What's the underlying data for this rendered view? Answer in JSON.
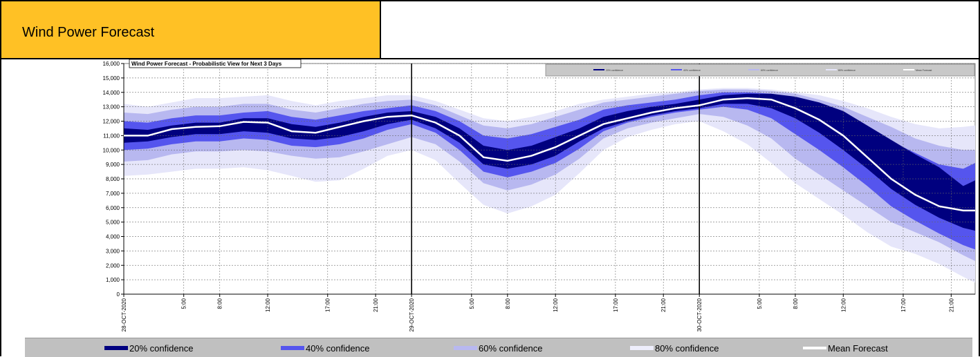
{
  "header": {
    "title": "Wind Power Forecast"
  },
  "chart_data": {
    "type": "area",
    "title": "Wind Power Forecast - Probabilistic View for Next 3 Days",
    "ylim": [
      0,
      16000
    ],
    "yticks": [
      "0",
      "1,000",
      "2,000",
      "3,000",
      "4,000",
      "5,000",
      "6,000",
      "7,000",
      "8,000",
      "9,000",
      "10,000",
      "11,000",
      "12,000",
      "13,000",
      "14,000",
      "15,000",
      "16,000"
    ],
    "xlim": [
      0,
      71
    ],
    "xticks": [
      {
        "x": 0,
        "label": "28-OCT-2020"
      },
      {
        "x": 5,
        "label": "5:00"
      },
      {
        "x": 8,
        "label": "8:00"
      },
      {
        "x": 12,
        "label": "12:00"
      },
      {
        "x": 17,
        "label": "17:00"
      },
      {
        "x": 21,
        "label": "21:00"
      },
      {
        "x": 24,
        "label": "29-OCT-2020"
      },
      {
        "x": 29,
        "label": "5:00"
      },
      {
        "x": 32,
        "label": "8:00"
      },
      {
        "x": 36,
        "label": "12:00"
      },
      {
        "x": 41,
        "label": "17:00"
      },
      {
        "x": 45,
        "label": "21:00"
      },
      {
        "x": 48,
        "label": "30-OCT-2020"
      },
      {
        "x": 53,
        "label": "5:00"
      },
      {
        "x": 56,
        "label": "8:00"
      },
      {
        "x": 60,
        "label": "12:00"
      },
      {
        "x": 65,
        "label": "17:00"
      },
      {
        "x": 69,
        "label": "21:00"
      }
    ],
    "day_boundaries": [
      24,
      48
    ],
    "grid": true,
    "x": [
      0,
      2,
      4,
      6,
      8,
      10,
      12,
      14,
      16,
      18,
      20,
      22,
      24,
      26,
      28,
      30,
      32,
      34,
      36,
      38,
      40,
      42,
      44,
      46,
      48,
      50,
      52,
      54,
      56,
      58,
      60,
      62,
      64,
      66,
      68,
      70,
      71
    ],
    "mean": [
      11000,
      11000,
      11450,
      11600,
      11650,
      11950,
      11900,
      11300,
      11200,
      11600,
      12000,
      12300,
      12400,
      11900,
      11000,
      9500,
      9250,
      9600,
      10200,
      11000,
      11800,
      12200,
      12600,
      12900,
      13100,
      13500,
      13600,
      13500,
      12900,
      12100,
      11000,
      9500,
      8000,
      6900,
      6100,
      5800,
      5800
    ],
    "series": [
      {
        "name": "80% confidence",
        "color": "#e6e6fa",
        "lower": [
          8200,
          8300,
          8500,
          8700,
          8700,
          8800,
          8600,
          8200,
          7800,
          7900,
          8700,
          9600,
          10000,
          9300,
          7700,
          6200,
          5600,
          6100,
          6900,
          8400,
          10000,
          10900,
          11400,
          11800,
          12000,
          11300,
          10400,
          9100,
          7700,
          6600,
          5500,
          4300,
          3300,
          2800,
          2100,
          1200,
          800
        ],
        "upper": [
          13200,
          13000,
          13300,
          13600,
          13600,
          13700,
          13800,
          13400,
          13100,
          13400,
          13600,
          13800,
          13800,
          13400,
          12800,
          12200,
          12000,
          12300,
          12700,
          13200,
          13500,
          13700,
          13900,
          14000,
          14200,
          14300,
          14300,
          14200,
          14000,
          13800,
          13400,
          12900,
          12300,
          11800,
          11500,
          11600,
          11700
        ]
      },
      {
        "name": "60% confidence",
        "color": "#b8b8f0",
        "lower": [
          9200,
          9300,
          9700,
          9900,
          9900,
          10000,
          9900,
          9600,
          9400,
          9500,
          9900,
          10400,
          10900,
          10400,
          9200,
          7700,
          7200,
          7600,
          8300,
          9400,
          10800,
          11500,
          11900,
          12200,
          12500,
          12300,
          11700,
          10800,
          9400,
          8300,
          7200,
          6100,
          5000,
          4300,
          3600,
          2700,
          2300
        ],
        "upper": [
          12600,
          12500,
          12800,
          13000,
          13000,
          13200,
          13200,
          12800,
          12600,
          12900,
          13200,
          13400,
          13500,
          13100,
          12400,
          11700,
          11500,
          11800,
          12300,
          12800,
          13300,
          13500,
          13700,
          13900,
          14100,
          14200,
          14200,
          14100,
          13900,
          13500,
          13000,
          12300,
          11600,
          10800,
          10300,
          10000,
          10000
        ]
      },
      {
        "name": "40% confidence",
        "color": "#5555ee",
        "lower": [
          10000,
          10100,
          10400,
          10600,
          10600,
          10800,
          10700,
          10300,
          10200,
          10400,
          10800,
          11400,
          11800,
          11200,
          10000,
          8500,
          8100,
          8500,
          9100,
          10100,
          11300,
          11900,
          12300,
          12600,
          12800,
          13000,
          12800,
          12200,
          11100,
          10000,
          8800,
          7500,
          6100,
          5100,
          4200,
          3400,
          3100
        ],
        "upper": [
          12000,
          11900,
          12200,
          12400,
          12400,
          12600,
          12700,
          12300,
          12100,
          12400,
          12700,
          12900,
          13100,
          12700,
          12000,
          11000,
          10800,
          11100,
          11600,
          12100,
          12800,
          13100,
          13300,
          13500,
          13800,
          14000,
          14000,
          13900,
          13600,
          13100,
          12400,
          11500,
          10600,
          9800,
          9000,
          8700,
          9100
        ]
      },
      {
        "name": "20% confidence",
        "color": "#00007f",
        "lower": [
          10500,
          10600,
          10900,
          11100,
          11100,
          11300,
          11200,
          10800,
          10700,
          10900,
          11300,
          11800,
          12100,
          11500,
          10500,
          9000,
          8700,
          9000,
          9600,
          10600,
          11500,
          12000,
          12400,
          12700,
          12900,
          13200,
          13200,
          12900,
          12200,
          11200,
          10000,
          8700,
          7300,
          6200,
          5300,
          4600,
          4400
        ],
        "upper": [
          11500,
          11400,
          11700,
          11900,
          11900,
          12200,
          12200,
          11800,
          11600,
          11900,
          12300,
          12600,
          12700,
          12300,
          11500,
          10300,
          10000,
          10300,
          10900,
          11500,
          12300,
          12700,
          13000,
          13200,
          13500,
          13800,
          13900,
          13900,
          13700,
          13300,
          12700,
          11700,
          10700,
          9700,
          8800,
          7500,
          7900
        ]
      }
    ]
  },
  "legend": {
    "items": [
      {
        "label": "20% confidence",
        "color": "#00007f"
      },
      {
        "label": "40% confidence",
        "color": "#5555ee"
      },
      {
        "label": "60% confidence",
        "color": "#b8b8f0"
      },
      {
        "label": "80% confidence",
        "color": "#e6e6fa"
      },
      {
        "label": "Mean Forecast",
        "color": "#ffffff"
      }
    ]
  }
}
